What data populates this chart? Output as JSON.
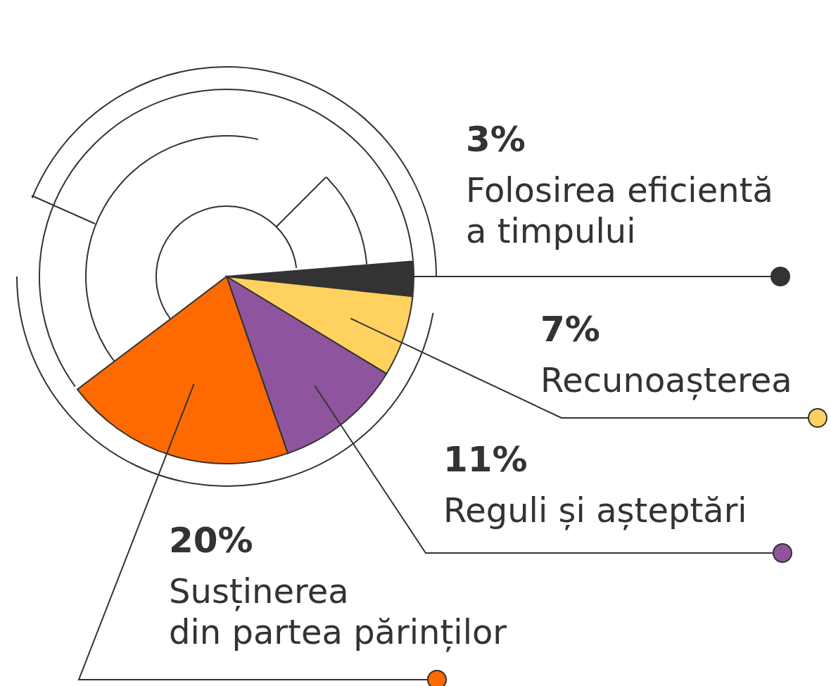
{
  "chart_data": {
    "type": "pie",
    "categories": [
      "Folosirea eficientă\na timpului",
      "Recunoașterea",
      "Reguli și așteptări",
      "Susținerea\ndin partea părinților"
    ],
    "values": [
      3,
      7,
      11,
      20
    ],
    "colors": [
      "#333333",
      "#ffd15f",
      "#8e559e",
      "#ff6a00"
    ],
    "value_labels": [
      "3%",
      "7%",
      "11%",
      "20%"
    ]
  }
}
